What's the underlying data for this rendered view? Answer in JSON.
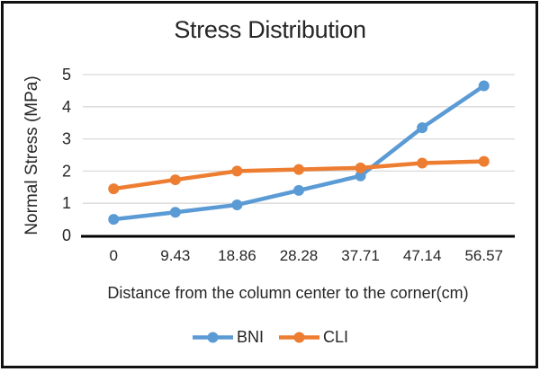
{
  "chart_data": {
    "type": "line",
    "title": "Stress Distribution",
    "xlabel": "Distance from the column center to the corner(cm)",
    "ylabel": "Normal Stress (MPa)",
    "categories": [
      "0",
      "9.43",
      "18.86",
      "28.28",
      "37.71",
      "47.14",
      "56.57"
    ],
    "series": [
      {
        "name": "BNI",
        "color": "#5B9BD5",
        "values": [
          0.5,
          0.72,
          0.95,
          1.4,
          1.85,
          3.35,
          4.65
        ]
      },
      {
        "name": "CLI",
        "color": "#ED7D31",
        "values": [
          1.45,
          1.73,
          2.0,
          2.05,
          2.1,
          2.25,
          2.3
        ]
      }
    ],
    "ylim": [
      0,
      5
    ],
    "yticks": [
      0,
      1,
      2,
      3,
      4,
      5
    ],
    "grid": "horizontal-only",
    "gridline_color": "#D9D9D9",
    "axis_line_color": "#000000",
    "text_color": "#262626",
    "border_color": "#111111",
    "background": "#FFFFFF",
    "legend_position": "bottom",
    "marker": "circle"
  }
}
